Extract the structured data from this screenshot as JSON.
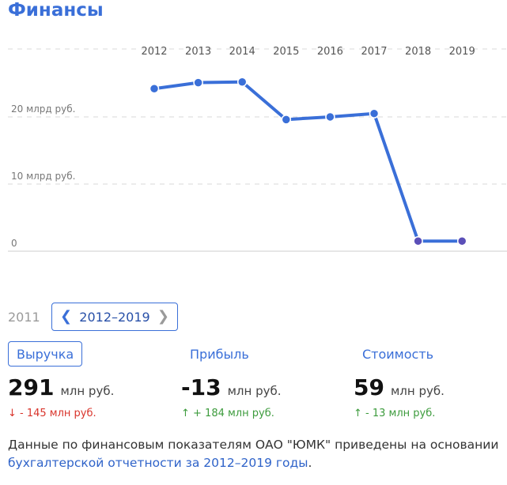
{
  "page": {
    "title": "Финансы"
  },
  "chart_data": {
    "type": "line",
    "categories": [
      "2012",
      "2013",
      "2014",
      "2015",
      "2016",
      "2017",
      "2018",
      "2019"
    ],
    "values": [
      23.5,
      24.4,
      24.5,
      18.9,
      19.3,
      19.8,
      0.8,
      0.8
    ],
    "y_ticks": [
      {
        "value": 20,
        "label": "20 млрд руб."
      },
      {
        "value": 10,
        "label": "10 млрд руб."
      },
      {
        "value": 0,
        "label": "0"
      }
    ],
    "y_unit": "млрд руб.",
    "ylim": [
      0,
      30
    ],
    "grid": true,
    "line_color": "#3a6fd8"
  },
  "range": {
    "prev_year": "2011",
    "label": "2012–2019"
  },
  "tabs": [
    {
      "label": "Выручка",
      "active": true
    },
    {
      "label": "Прибыль",
      "active": false
    },
    {
      "label": "Стоимость",
      "active": false
    }
  ],
  "metrics": [
    {
      "value": "291",
      "unit": "млн руб.",
      "delta": "↓ - 145 млн руб.",
      "trend": "down"
    },
    {
      "value": "-13",
      "unit": "млн руб.",
      "delta": "↑ + 184 млн руб.",
      "trend": "up"
    },
    {
      "value": "59",
      "unit": "млн руб.",
      "delta": "↑ - 13 млн руб.",
      "trend": "up"
    }
  ],
  "note": {
    "text": "Данные по финансовым показателям ОАО \"ЮМК\" приведены на основании ",
    "link": "бухгалтерской отчетности за 2012–2019 годы",
    "end": "."
  },
  "colors": {
    "accent": "#3a6fd8",
    "negative": "#d9342b",
    "positive": "#3c9b3c"
  }
}
